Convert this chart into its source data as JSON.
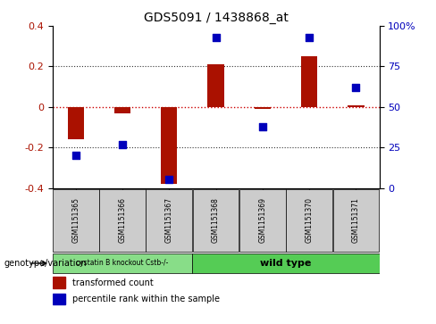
{
  "title": "GDS5091 / 1438868_at",
  "samples": [
    "GSM1151365",
    "GSM1151366",
    "GSM1151367",
    "GSM1151368",
    "GSM1151369",
    "GSM1151370",
    "GSM1151371"
  ],
  "bar_values": [
    -0.16,
    -0.03,
    -0.38,
    0.21,
    -0.01,
    0.25,
    0.01
  ],
  "dot_pct": [
    20,
    27,
    5,
    93,
    38,
    93,
    62
  ],
  "ylim_left": [
    -0.4,
    0.4
  ],
  "ylim_right": [
    0,
    100
  ],
  "yticks_left": [
    -0.4,
    -0.2,
    0.0,
    0.2,
    0.4
  ],
  "yticks_right": [
    0,
    25,
    50,
    75,
    100
  ],
  "ytick_labels_right": [
    "0",
    "25",
    "50",
    "75",
    "100%"
  ],
  "bar_color": "#aa1100",
  "dot_color": "#0000bb",
  "zero_line_color": "#cc0000",
  "dotted_line_color": "#333333",
  "group1_label": "cystatin B knockout Cstb-/-",
  "group2_label": "wild type",
  "group1_indices": [
    0,
    1,
    2
  ],
  "group2_indices": [
    3,
    4,
    5,
    6
  ],
  "group1_color": "#88dd88",
  "group2_color": "#55cc55",
  "legend_bar_label": "transformed count",
  "legend_dot_label": "percentile rank within the sample",
  "genotype_label": "genotype/variation",
  "bg_plot": "#ffffff",
  "bg_sample_cells": "#cccccc",
  "bar_width": 0.35,
  "title_fontsize": 10
}
